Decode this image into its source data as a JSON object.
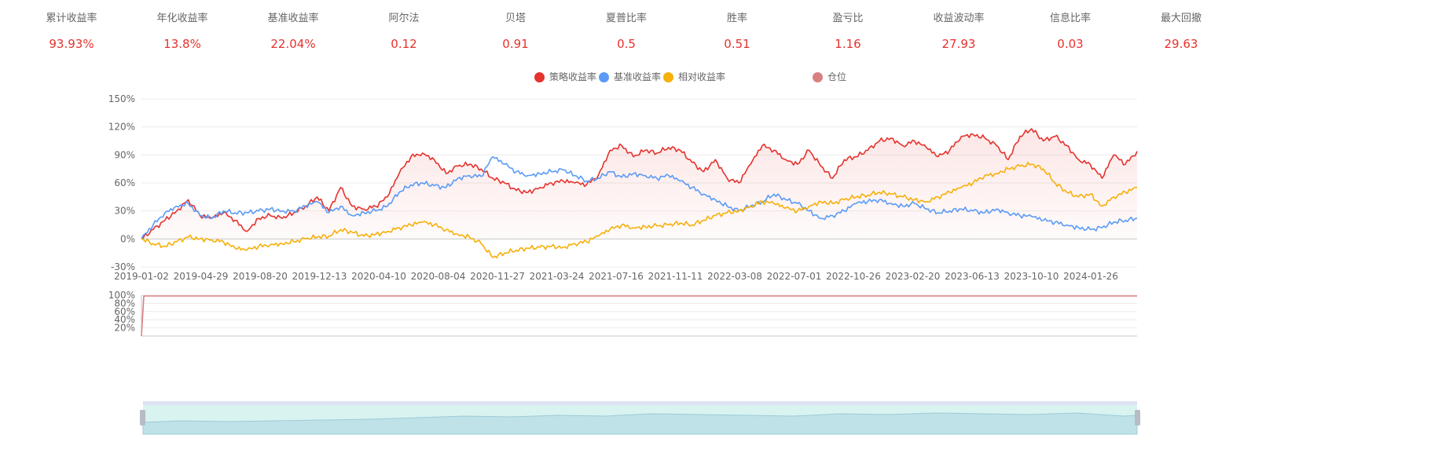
{
  "metrics": [
    {
      "label": "累计收益率",
      "value": "93.93%"
    },
    {
      "label": "年化收益率",
      "value": "13.8%"
    },
    {
      "label": "基准收益率",
      "value": "22.04%"
    },
    {
      "label": "阿尔法",
      "value": "0.12"
    },
    {
      "label": "贝塔",
      "value": "0.91"
    },
    {
      "label": "夏普比率",
      "value": "0.5"
    },
    {
      "label": "胜率",
      "value": "0.51"
    },
    {
      "label": "盈亏比",
      "value": "1.16"
    },
    {
      "label": "收益波动率",
      "value": "27.93"
    },
    {
      "label": "信息比率",
      "value": "0.03"
    },
    {
      "label": "最大回撤",
      "value": "29.63"
    }
  ],
  "legend": [
    {
      "name": "策略收益率",
      "color": "#e5322d"
    },
    {
      "name": "基准收益率",
      "color": "#5b9bf5"
    },
    {
      "name": "相对收益率",
      "color": "#f5b00a"
    },
    {
      "name": "仓位",
      "color": "#d98080"
    }
  ],
  "chart_data": [
    {
      "type": "line",
      "y_tick_labels": [
        "150%",
        "120%",
        "90%",
        "60%",
        "30%",
        "0%",
        "-30%"
      ],
      "ylim": [
        -30,
        150
      ],
      "x_tick_labels": [
        "2019-01-02",
        "2019-04-29",
        "2019-08-20",
        "2019-12-13",
        "2020-04-10",
        "2020-08-04",
        "2020-11-27",
        "2021-03-24",
        "2021-07-16",
        "2021-11-11",
        "2022-03-08",
        "2022-07-01",
        "2022-10-26",
        "2023-02-20",
        "2023-06-13",
        "2023-10-10",
        "2024-01-26"
      ],
      "grid": true,
      "legend_position": "top-center",
      "series": [
        {
          "name": "策略收益率",
          "color": "#e5322d",
          "area_fill": true,
          "values": [
            0,
            10,
            20,
            30,
            42,
            25,
            22,
            28,
            20,
            8,
            22,
            25,
            22,
            28,
            35,
            45,
            30,
            55,
            35,
            32,
            35,
            45,
            70,
            88,
            92,
            85,
            70,
            78,
            80,
            75,
            65,
            60,
            52,
            50,
            55,
            60,
            62,
            60,
            58,
            68,
            95,
            100,
            88,
            95,
            92,
            98,
            95,
            82,
            72,
            85,
            65,
            60,
            80,
            100,
            95,
            85,
            80,
            95,
            78,
            65,
            85,
            88,
            95,
            105,
            108,
            100,
            105,
            98,
            88,
            95,
            110,
            112,
            108,
            100,
            85,
            110,
            118,
            105,
            110,
            100,
            85,
            80,
            65,
            90,
            80,
            93.93
          ]
        },
        {
          "name": "基准收益率",
          "color": "#5b9bf5",
          "area_fill": false,
          "values": [
            0,
            15,
            28,
            35,
            38,
            25,
            22,
            30,
            28,
            28,
            30,
            32,
            30,
            30,
            35,
            40,
            28,
            35,
            25,
            28,
            30,
            35,
            50,
            58,
            60,
            57,
            55,
            65,
            68,
            67,
            88,
            80,
            72,
            68,
            70,
            72,
            74,
            68,
            62,
            65,
            72,
            66,
            70,
            68,
            65,
            68,
            62,
            55,
            48,
            42,
            35,
            30,
            35,
            40,
            48,
            42,
            38,
            30,
            22,
            25,
            30,
            38,
            40,
            42,
            38,
            35,
            38,
            32,
            28,
            30,
            32,
            30,
            28,
            32,
            28,
            25,
            24,
            20,
            18,
            15,
            12,
            10,
            12,
            18,
            20,
            22.04
          ]
        },
        {
          "name": "相对收益率",
          "color": "#f5b00a",
          "area_fill": false,
          "values": [
            0,
            -5,
            -8,
            -3,
            2,
            0,
            -1,
            -3,
            -10,
            -12,
            -8,
            -6,
            -5,
            -3,
            0,
            2,
            3,
            10,
            7,
            3,
            5,
            8,
            12,
            15,
            18,
            15,
            10,
            5,
            2,
            -5,
            -20,
            -15,
            -12,
            -10,
            -9,
            -8,
            -9,
            -5,
            -3,
            3,
            10,
            15,
            12,
            13,
            14,
            15,
            17,
            15,
            20,
            25,
            28,
            30,
            35,
            40,
            38,
            33,
            30,
            35,
            40,
            38,
            42,
            45,
            47,
            50,
            48,
            45,
            42,
            40,
            45,
            50,
            55,
            60,
            68,
            70,
            75,
            78,
            80,
            75,
            60,
            50,
            45,
            48,
            35,
            45,
            50,
            55
          ]
        }
      ]
    },
    {
      "type": "area",
      "y_tick_labels": [
        "100%",
        "80%",
        "60%",
        "40%",
        "20%"
      ],
      "ylim": [
        0,
        100
      ],
      "series": [
        {
          "name": "仓位",
          "color": "#d98080",
          "values": [
            0,
            98,
            98,
            98,
            98,
            98,
            98,
            98,
            98,
            98,
            98,
            98,
            98,
            98,
            98,
            98,
            98,
            98,
            98,
            98,
            98,
            98
          ]
        }
      ]
    }
  ]
}
